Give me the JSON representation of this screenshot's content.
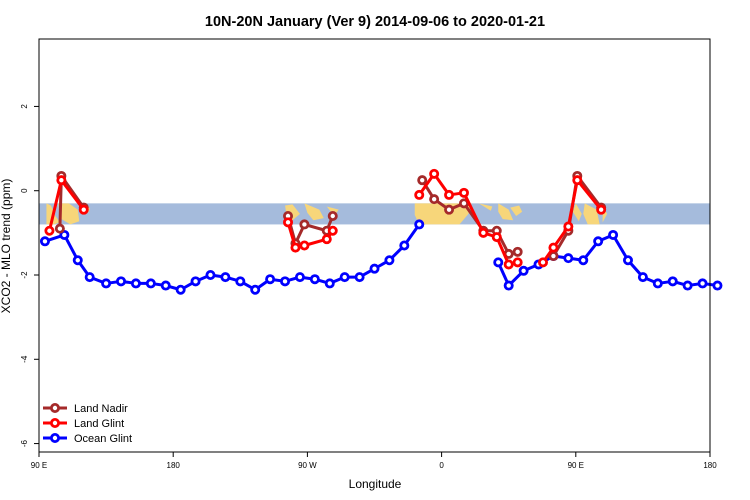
{
  "chart_data": {
    "type": "line",
    "title": "10N-20N January (Ver 9)   2014-09-06 to 2020-01-21",
    "xlabel": "Longitude",
    "ylabel": "XCO2 - MLO trend (ppm)",
    "xlim": [
      90,
      540
    ],
    "ylim": [
      -6.2,
      3.6
    ],
    "x_ticks": [
      {
        "value": 90,
        "label": "90 E"
      },
      {
        "value": 180,
        "label": "180"
      },
      {
        "value": 270,
        "label": "90 W"
      },
      {
        "value": 360,
        "label": "0"
      },
      {
        "value": 450,
        "label": "90 E"
      },
      {
        "value": 540,
        "label": "180"
      }
    ],
    "y_ticks": [
      {
        "value": 2,
        "label": "2"
      },
      {
        "value": 0,
        "label": "0"
      },
      {
        "value": -2,
        "label": "-2"
      },
      {
        "value": -4,
        "label": "-4"
      },
      {
        "value": -6,
        "label": "-6"
      }
    ],
    "map_band": {
      "y_top": -0.3,
      "y_bottom": -0.8,
      "ocean_color": "#a5bbdc",
      "land_color": "#f7d67a"
    },
    "legend_position": "bottom-left",
    "series": [
      {
        "name": "Land Nadir",
        "color": "#a52a2a",
        "segments": [
          [
            [
              104,
              -0.9
            ],
            [
              105,
              0.35
            ],
            [
              120,
              -0.4
            ]
          ],
          [
            [
              257,
              -0.6
            ],
            [
              262,
              -1.25
            ],
            [
              268,
              -0.8
            ],
            [
              283,
              -0.95
            ],
            [
              287,
              -0.6
            ]
          ],
          [
            [
              347,
              0.25
            ],
            [
              355,
              -0.2
            ],
            [
              365,
              -0.45
            ],
            [
              375,
              -0.3
            ],
            [
              388,
              -0.95
            ],
            [
              397,
              -0.95
            ],
            [
              405,
              -1.5
            ],
            [
              411,
              -1.45
            ]
          ],
          [
            [
              435,
              -1.55
            ],
            [
              445,
              -0.95
            ],
            [
              451,
              0.35
            ],
            [
              467,
              -0.4
            ]
          ]
        ]
      },
      {
        "name": "Land Glint",
        "color": "#ff0000",
        "segments": [
          [
            [
              97,
              -0.95
            ],
            [
              105,
              0.25
            ],
            [
              120,
              -0.45
            ]
          ],
          [
            [
              257,
              -0.75
            ],
            [
              262,
              -1.35
            ],
            [
              268,
              -1.3
            ],
            [
              283,
              -1.15
            ],
            [
              287,
              -0.95
            ]
          ],
          [
            [
              345,
              -0.1
            ],
            [
              355,
              0.4
            ],
            [
              365,
              -0.1
            ],
            [
              375,
              -0.05
            ],
            [
              388,
              -1.0
            ],
            [
              397,
              -1.1
            ],
            [
              405,
              -1.75
            ],
            [
              411,
              -1.7
            ]
          ],
          [
            [
              428,
              -1.7
            ],
            [
              435,
              -1.35
            ],
            [
              445,
              -0.85
            ],
            [
              451,
              0.25
            ],
            [
              467,
              -0.45
            ]
          ]
        ]
      },
      {
        "name": "Ocean Glint",
        "color": "#0000ff",
        "segments": [
          [
            [
              94,
              -1.2
            ],
            [
              107,
              -1.05
            ],
            [
              116,
              -1.65
            ],
            [
              124,
              -2.05
            ],
            [
              135,
              -2.2
            ],
            [
              145,
              -2.15
            ],
            [
              155,
              -2.2
            ],
            [
              165,
              -2.2
            ],
            [
              175,
              -2.25
            ],
            [
              185,
              -2.35
            ],
            [
              195,
              -2.15
            ],
            [
              205,
              -2.0
            ],
            [
              215,
              -2.05
            ],
            [
              225,
              -2.15
            ],
            [
              235,
              -2.35
            ],
            [
              245,
              -2.1
            ],
            [
              255,
              -2.15
            ],
            [
              265,
              -2.05
            ],
            [
              275,
              -2.1
            ],
            [
              285,
              -2.2
            ],
            [
              295,
              -2.05
            ],
            [
              305,
              -2.05
            ],
            [
              315,
              -1.85
            ],
            [
              325,
              -1.65
            ],
            [
              335,
              -1.3
            ],
            [
              345,
              -0.8
            ]
          ],
          [
            [
              398,
              -1.7
            ],
            [
              405,
              -2.25
            ],
            [
              415,
              -1.9
            ],
            [
              425,
              -1.75
            ],
            [
              435,
              -1.55
            ],
            [
              445,
              -1.6
            ],
            [
              455,
              -1.65
            ],
            [
              465,
              -1.2
            ],
            [
              475,
              -1.05
            ],
            [
              485,
              -1.65
            ],
            [
              495,
              -2.05
            ],
            [
              505,
              -2.2
            ],
            [
              515,
              -2.15
            ],
            [
              525,
              -2.25
            ],
            [
              535,
              -2.2
            ],
            [
              545,
              -2.25
            ]
          ]
        ]
      }
    ]
  }
}
